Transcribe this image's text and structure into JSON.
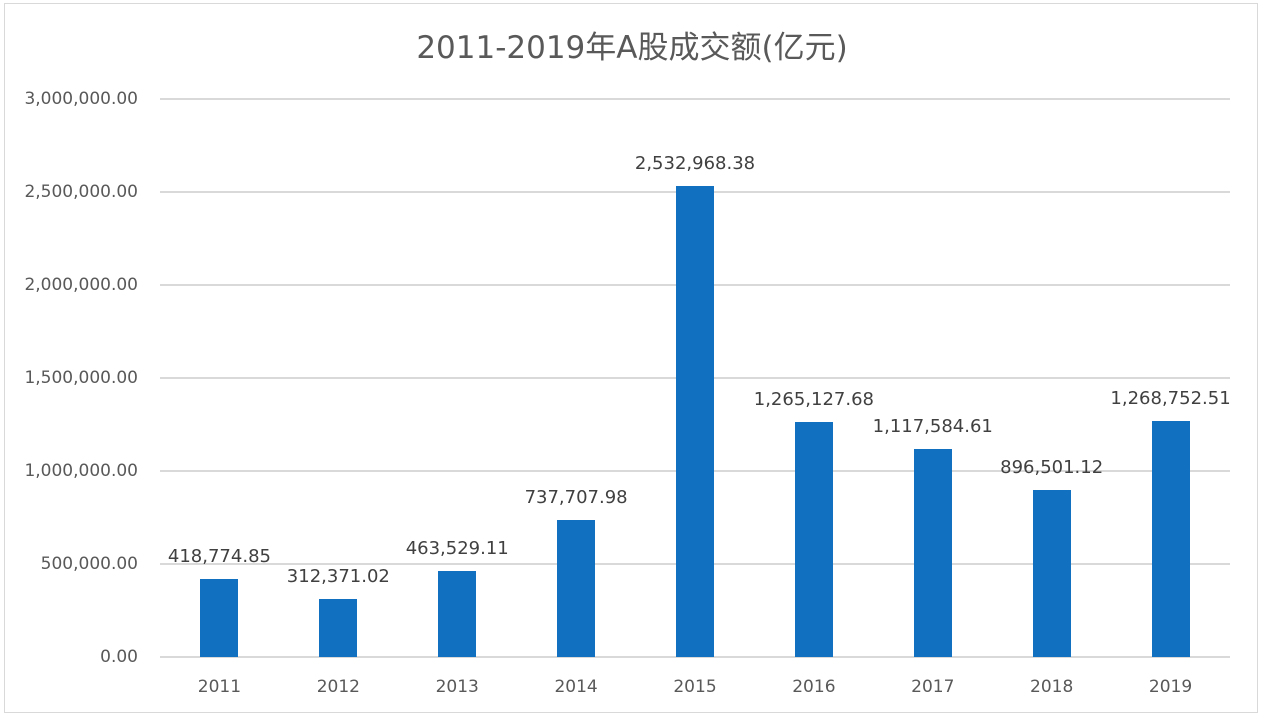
{
  "chart_data": {
    "type": "bar",
    "title": "2011-2019年A股成交额(亿元)",
    "xlabel": "",
    "ylabel": "",
    "categories": [
      "2011",
      "2012",
      "2013",
      "2014",
      "2015",
      "2016",
      "2017",
      "2018",
      "2019"
    ],
    "values": [
      418774.85,
      312371.02,
      463529.11,
      737707.98,
      2532968.38,
      1265127.68,
      1117584.61,
      896501.12,
      1268752.51
    ],
    "value_labels": [
      "418,774.85",
      "312,371.02",
      "463,529.11",
      "737,707.98",
      "2,532,968.38",
      "1,265,127.68",
      "1,117,584.61",
      "896,501.12",
      "1,268,752.51"
    ],
    "ylim": [
      0,
      3000000
    ],
    "yticks": [
      "0.00",
      "500,000.00",
      "1,000,000.00",
      "1,500,000.00",
      "2,000,000.00",
      "2,500,000.00",
      "3,000,000.00"
    ],
    "grid": true,
    "legend": null,
    "bar_color": "#1170c0"
  }
}
